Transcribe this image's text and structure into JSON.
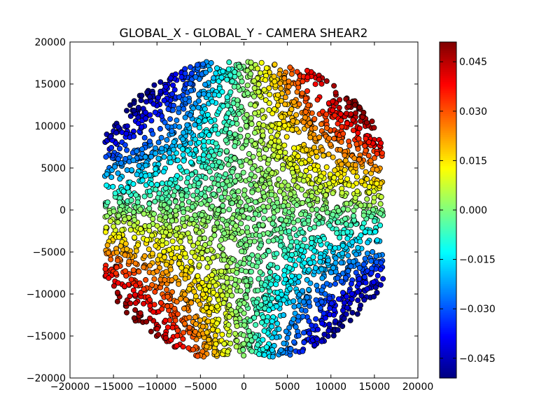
{
  "chart_data": {
    "type": "scatter",
    "title": "GLOBAL_X - GLOBAL_Y - CAMERA SHEAR2",
    "xlabel": "",
    "ylabel": "",
    "xlim": [
      -20000,
      20000
    ],
    "ylim": [
      -20000,
      20000
    ],
    "x_ticks": [
      -20000,
      -15000,
      -10000,
      -5000,
      0,
      5000,
      10000,
      15000,
      20000
    ],
    "x_tick_labels": [
      "−20000",
      "−15000",
      "−10000",
      "−5000",
      "0",
      "5000",
      "10000",
      "15000",
      "20000"
    ],
    "y_ticks": [
      -20000,
      -15000,
      -10000,
      -5000,
      0,
      5000,
      10000,
      15000,
      20000
    ],
    "y_tick_labels": [
      "−20000",
      "−15000",
      "−10000",
      "−5000",
      "0",
      "5000",
      "10000",
      "15000",
      "20000"
    ],
    "grid": false,
    "colormap": "jet",
    "color_quantity_range": [
      -0.051,
      0.051
    ],
    "colorbar_ticks": [
      0.045,
      0.03,
      0.015,
      0.0,
      -0.015,
      -0.03,
      -0.045
    ],
    "colorbar_tick_labels": [
      "0.045",
      "0.030",
      "0.015",
      "0.000",
      "−0.015",
      "−0.030",
      "−0.045"
    ],
    "point_field": {
      "shape": "circular focal plane",
      "x_extent": [
        -16000,
        16000
      ],
      "y_extent": [
        -17500,
        17700
      ],
      "shear2_model": "shear2 ≈ 0.046 · sin(2·atan2(y, x)) · (r / 17000)^2",
      "values_at_locations": [
        {
          "x": -13000,
          "y": 12000,
          "shear2": -0.048
        },
        {
          "x": 13000,
          "y": 12000,
          "shear2": 0.048
        },
        {
          "x": -13000,
          "y": -12000,
          "shear2": 0.048
        },
        {
          "x": 13000,
          "y": -12000,
          "shear2": -0.048
        },
        {
          "x": 0,
          "y": 16000,
          "shear2": 0.0
        },
        {
          "x": 0,
          "y": -16000,
          "shear2": 0.0
        },
        {
          "x": -15500,
          "y": 0,
          "shear2": 0.0
        },
        {
          "x": 15500,
          "y": 0,
          "shear2": 0.0
        },
        {
          "x": 0,
          "y": 0,
          "shear2": 0.0
        }
      ]
    }
  },
  "colors": {
    "point_edge": "#000000",
    "background": "#ffffff"
  }
}
